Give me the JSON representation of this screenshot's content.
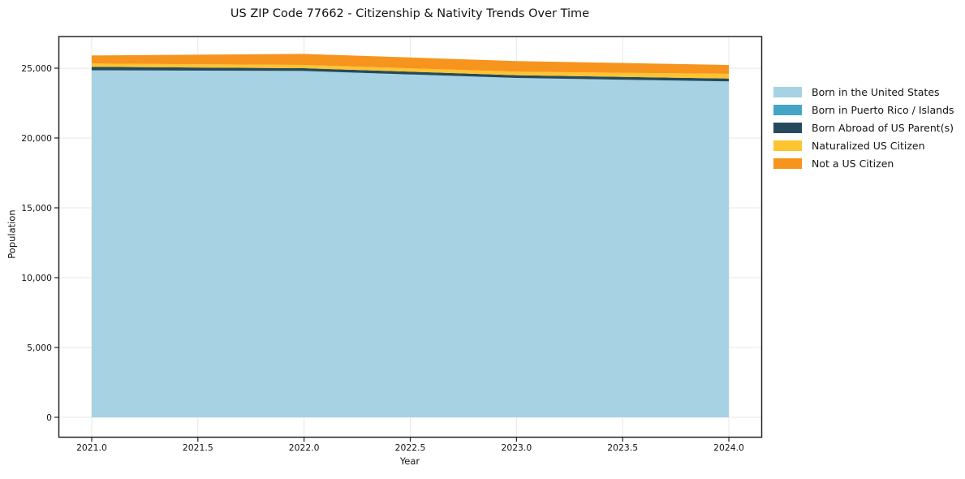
{
  "chart_data": {
    "type": "area",
    "stacked": true,
    "title": "US ZIP Code 77662 - Citizenship & Nativity Trends Over Time",
    "xlabel": "Year",
    "ylabel": "Population",
    "x": [
      2021,
      2022,
      2023,
      2024
    ],
    "series": [
      {
        "name": "Born in the United States",
        "color": "#A6D2E4",
        "values": [
          24850,
          24800,
          24300,
          24050
        ]
      },
      {
        "name": "Born in Puerto Rico / Islands",
        "color": "#45A5C6",
        "values": [
          0,
          0,
          0,
          0
        ]
      },
      {
        "name": "Born Abroad of US Parent(s)",
        "color": "#264A5C",
        "values": [
          250,
          200,
          200,
          210
        ]
      },
      {
        "name": "Naturalized US Citizen",
        "color": "#FDC431",
        "values": [
          230,
          230,
          250,
          330
        ]
      },
      {
        "name": "Not a US Citizen",
        "color": "#F7941E",
        "values": [
          580,
          790,
          760,
          640
        ]
      }
    ],
    "totals": [
      25910,
      26020,
      25510,
      25230
    ],
    "xlim": [
      2020.8454,
      2024.1546
    ],
    "ylim": [
      -1424,
      27267
    ],
    "x_ticks": {
      "values": [
        2021,
        2021.5,
        2022,
        2022.5,
        2023,
        2023.5,
        2024
      ],
      "labels": [
        "2021.0",
        "2021.5",
        "2022.0",
        "2022.5",
        "2023.0",
        "2023.5",
        "2024.0"
      ]
    },
    "y_ticks": {
      "values": [
        0,
        5000,
        10000,
        15000,
        20000,
        25000
      ],
      "labels": [
        "0",
        "5,000",
        "10,000",
        "15,000",
        "20,000",
        "25,000"
      ]
    },
    "grid": true,
    "legend_position": "right"
  },
  "colors": {
    "grid": "#e7e7e7",
    "spine": "#262626",
    "tick": "#262626",
    "text": "#141414",
    "background": "#ffffff"
  }
}
